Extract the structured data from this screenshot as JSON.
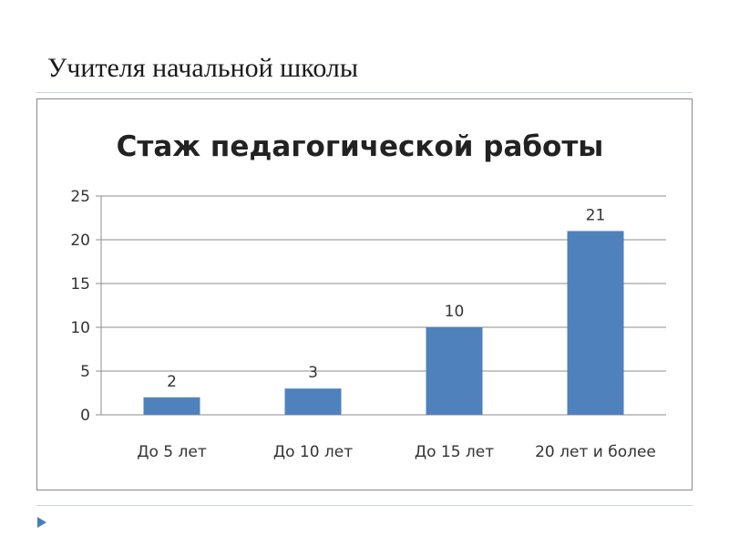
{
  "slide": {
    "title": "Учителя начальной школы"
  },
  "colors": {
    "bar": "#4f81bd",
    "gridline": "#8c8c8c",
    "marker": "#4a7fb5"
  },
  "icons": {
    "footer_marker": "triangle-right-icon"
  },
  "chart_data": {
    "type": "bar",
    "title": "Стаж педагогической работы",
    "categories": [
      "До 5 лет",
      "До 10 лет",
      "До 15 лет",
      "20 лет и более"
    ],
    "values": [
      2,
      3,
      10,
      21
    ],
    "data_labels": [
      "2",
      "3",
      "10",
      "21"
    ],
    "xlabel": "",
    "ylabel": "",
    "ylim": [
      0,
      25
    ],
    "yticks": [
      "0",
      "5",
      "10",
      "15",
      "20",
      "25"
    ],
    "grid": true,
    "legend": "none"
  }
}
